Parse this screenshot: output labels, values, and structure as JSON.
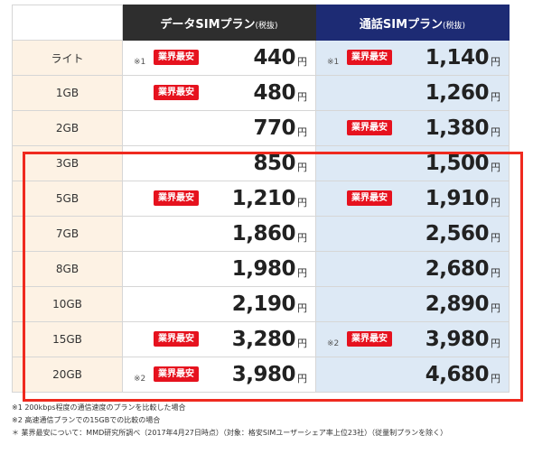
{
  "header": {
    "data_sim": "データSIMプラン",
    "call_sim": "通話SIMプラン",
    "tax_note": "(税抜)"
  },
  "badge_label": "業界最安",
  "yen_unit": "円",
  "rows": [
    {
      "plan": "ライト",
      "data": {
        "price": "440",
        "badge": true,
        "mark": "※1"
      },
      "call": {
        "price": "1,140",
        "badge": true,
        "mark": "※1"
      }
    },
    {
      "plan": "1GB",
      "data": {
        "price": "480",
        "badge": true,
        "mark": ""
      },
      "call": {
        "price": "1,260",
        "badge": false,
        "mark": ""
      }
    },
    {
      "plan": "2GB",
      "data": {
        "price": "770",
        "badge": false,
        "mark": ""
      },
      "call": {
        "price": "1,380",
        "badge": true,
        "mark": ""
      }
    },
    {
      "plan": "3GB",
      "data": {
        "price": "850",
        "badge": false,
        "mark": ""
      },
      "call": {
        "price": "1,500",
        "badge": false,
        "mark": ""
      }
    },
    {
      "plan": "5GB",
      "data": {
        "price": "1,210",
        "badge": true,
        "mark": ""
      },
      "call": {
        "price": "1,910",
        "badge": true,
        "mark": ""
      }
    },
    {
      "plan": "7GB",
      "data": {
        "price": "1,860",
        "badge": false,
        "mark": ""
      },
      "call": {
        "price": "2,560",
        "badge": false,
        "mark": ""
      }
    },
    {
      "plan": "8GB",
      "data": {
        "price": "1,980",
        "badge": false,
        "mark": ""
      },
      "call": {
        "price": "2,680",
        "badge": false,
        "mark": ""
      }
    },
    {
      "plan": "10GB",
      "data": {
        "price": "2,190",
        "badge": false,
        "mark": ""
      },
      "call": {
        "price": "2,890",
        "badge": false,
        "mark": ""
      }
    },
    {
      "plan": "15GB",
      "data": {
        "price": "3,280",
        "badge": true,
        "mark": ""
      },
      "call": {
        "price": "3,980",
        "badge": true,
        "mark": "※2"
      }
    },
    {
      "plan": "20GB",
      "data": {
        "price": "3,980",
        "badge": true,
        "mark": "※2"
      },
      "call": {
        "price": "4,680",
        "badge": false,
        "mark": ""
      }
    }
  ],
  "notes": [
    "※1 200kbps程度の通信速度のプランを比較した場合",
    "※2 高速通信プランでの15GBでの比較の場合",
    "＊ 業界最安について：MMD研究所調べ（2017年4月27日時点）（対象：格安SIMユーザーシェア率上位23社）（従量制プランを除く）"
  ],
  "colors": {
    "badge": "#e6121e",
    "highlight": "#ef2a1f",
    "data_header": "#2e2e2e",
    "call_header": "#1d2b74",
    "plan_bg": "#fdf2e4",
    "call_bg": "#dde9f5"
  }
}
